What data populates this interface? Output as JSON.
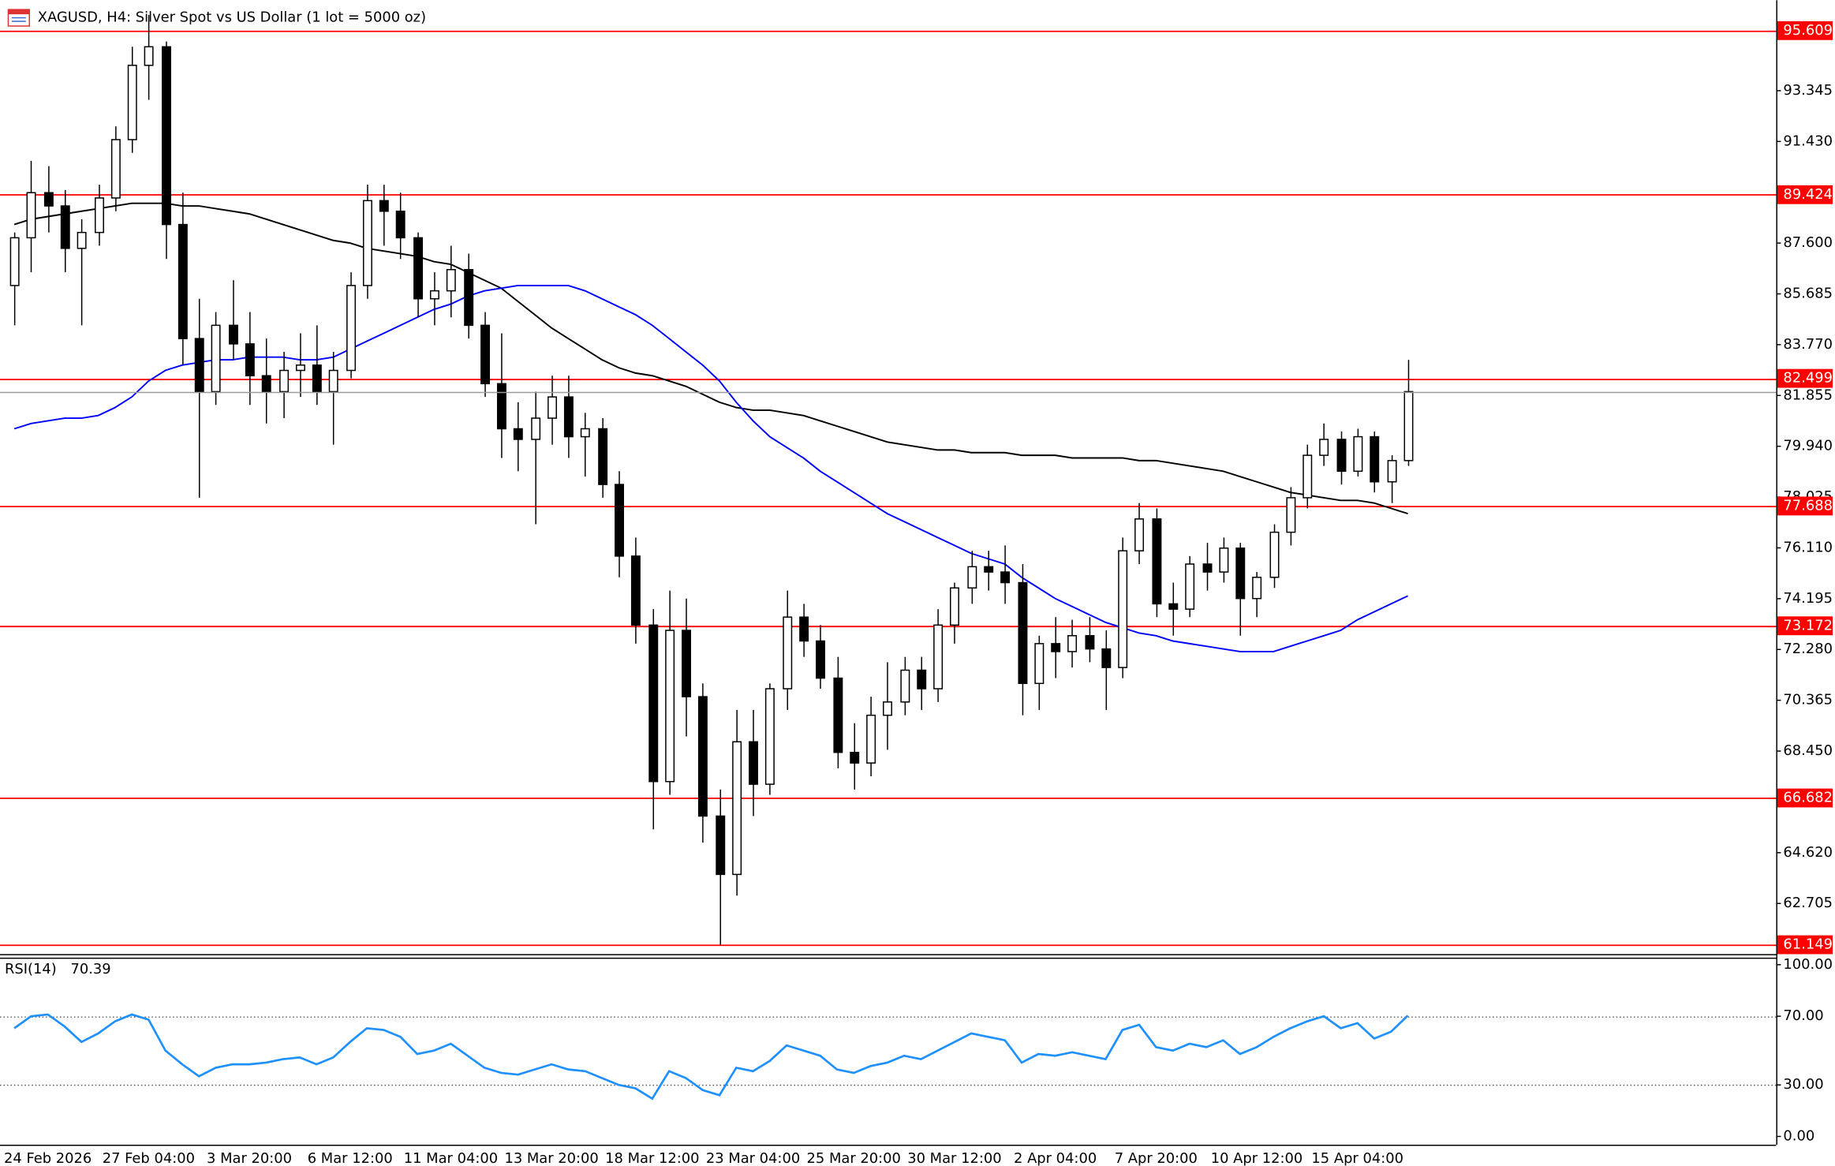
{
  "chart_data": {
    "type": "candlestick",
    "title": "XAGUSD, H4: Silver Spot vs US Dollar (1 lot = 5000 oz)",
    "categories": [
      null,
      null,
      "24 Feb 2026",
      null,
      null,
      null,
      null,
      null,
      "27 Feb 04:00",
      null,
      null,
      null,
      null,
      null,
      "3 Mar 20:00",
      null,
      null,
      null,
      null,
      null,
      "6 Mar 12:00",
      null,
      null,
      null,
      null,
      null,
      "11 Mar 04:00",
      null,
      null,
      null,
      null,
      null,
      "13 Mar 20:00",
      null,
      null,
      null,
      null,
      null,
      "18 Mar 12:00",
      null,
      null,
      null,
      null,
      null,
      "23 Mar 04:00",
      null,
      null,
      null,
      null,
      null,
      "25 Mar 20:00",
      null,
      null,
      null,
      null,
      null,
      "30 Mar 12:00",
      null,
      null,
      null,
      null,
      null,
      "2 Apr 04:00",
      null,
      null,
      null,
      null,
      null,
      "7 Apr 20:00",
      null,
      null,
      null,
      null,
      null,
      "10 Apr 12:00",
      null,
      null,
      null,
      null,
      null,
      "15 Apr 04:00",
      null,
      null,
      null
    ],
    "candles": [
      [
        86,
        88,
        84.5,
        87.8
      ],
      [
        87.8,
        90.7,
        86.5,
        89.5
      ],
      [
        89.5,
        90.5,
        88,
        89.0
      ],
      [
        89.0,
        89.6,
        86.5,
        87.4
      ],
      [
        87.4,
        88.5,
        84.5,
        88.0
      ],
      [
        88,
        89.8,
        87.5,
        89.3
      ],
      [
        89.3,
        92,
        88.8,
        91.5
      ],
      [
        91.5,
        95,
        91,
        94.3
      ],
      [
        94.3,
        96.2,
        93,
        95.0
      ],
      [
        95,
        95.2,
        87,
        88.3
      ],
      [
        88.3,
        89.5,
        83,
        84.0
      ],
      [
        84,
        85.5,
        78,
        82.0
      ],
      [
        82,
        85,
        81.5,
        84.5
      ],
      [
        84.5,
        86.2,
        83.2,
        83.8
      ],
      [
        83.8,
        85,
        81.5,
        82.6
      ],
      [
        82.6,
        84,
        80.8,
        82.0
      ],
      [
        82,
        83.5,
        81,
        82.8
      ],
      [
        82.8,
        84.2,
        81.8,
        83.0
      ],
      [
        83,
        84.5,
        81.5,
        82.0
      ],
      [
        82,
        83.5,
        80,
        82.8
      ],
      [
        82.8,
        86.5,
        82.5,
        86.0
      ],
      [
        86,
        89.8,
        85.5,
        89.2
      ],
      [
        89.2,
        89.8,
        87.5,
        88.8
      ],
      [
        88.8,
        89.5,
        87,
        87.8
      ],
      [
        87.8,
        88,
        84.8,
        85.5
      ],
      [
        85.5,
        86.5,
        84.5,
        85.8
      ],
      [
        85.8,
        87.5,
        84.8,
        86.6
      ],
      [
        86.6,
        87.2,
        84,
        84.5
      ],
      [
        84.5,
        85,
        81.8,
        82.3
      ],
      [
        82.3,
        84.2,
        79.5,
        80.6
      ],
      [
        80.6,
        81.6,
        79,
        80.2
      ],
      [
        80.2,
        82,
        77,
        81.0
      ],
      [
        81,
        82.6,
        80,
        81.8
      ],
      [
        81.8,
        82.6,
        79.5,
        80.3
      ],
      [
        80.3,
        81.2,
        78.8,
        80.6
      ],
      [
        80.6,
        81.0,
        78,
        78.5
      ],
      [
        78.5,
        79,
        75,
        75.8
      ],
      [
        75.8,
        76.5,
        72.5,
        73.2
      ],
      [
        73.2,
        73.8,
        65.5,
        67.3
      ],
      [
        67.3,
        74.5,
        66.8,
        73.0
      ],
      [
        73,
        74.2,
        69,
        70.5
      ],
      [
        70.5,
        71,
        65,
        66.0
      ],
      [
        66,
        67,
        61.149,
        63.8
      ],
      [
        63.8,
        70,
        63,
        68.8
      ],
      [
        68.8,
        70,
        66,
        67.2
      ],
      [
        67.2,
        71,
        66.8,
        70.8
      ],
      [
        70.8,
        74.5,
        70,
        73.5
      ],
      [
        73.5,
        74,
        72,
        72.6
      ],
      [
        72.6,
        73.2,
        70.8,
        71.2
      ],
      [
        71.2,
        72,
        67.8,
        68.4
      ],
      [
        68.4,
        69.5,
        67,
        68.0
      ],
      [
        68,
        70.5,
        67.5,
        69.8
      ],
      [
        69.8,
        71.8,
        68.5,
        70.3
      ],
      [
        70.3,
        72,
        69.8,
        71.5
      ],
      [
        71.5,
        72,
        70,
        70.8
      ],
      [
        70.8,
        73.8,
        70.3,
        73.2
      ],
      [
        73.2,
        74.8,
        72.5,
        74.6
      ],
      [
        74.6,
        76,
        74,
        75.4
      ],
      [
        75.4,
        76,
        74.5,
        75.2
      ],
      [
        75.2,
        76.2,
        74,
        74.8
      ],
      [
        74.8,
        75.5,
        69.8,
        71.0
      ],
      [
        71,
        72.8,
        70,
        72.5
      ],
      [
        72.5,
        73.5,
        71.2,
        72.2
      ],
      [
        72.2,
        73.4,
        71.6,
        72.8
      ],
      [
        72.8,
        73.5,
        71.8,
        72.3
      ],
      [
        72.3,
        73,
        70,
        71.6
      ],
      [
        71.6,
        76.5,
        71.2,
        76.0
      ],
      [
        76,
        77.8,
        75.5,
        77.2
      ],
      [
        77.2,
        77.6,
        73.5,
        74.0
      ],
      [
        74,
        74.8,
        72.8,
        73.8
      ],
      [
        73.8,
        75.8,
        73.5,
        75.5
      ],
      [
        75.5,
        76.3,
        74.5,
        75.2
      ],
      [
        75.2,
        76.5,
        74.8,
        76.1
      ],
      [
        76.1,
        76.3,
        72.8,
        74.2
      ],
      [
        74.2,
        75.2,
        73.5,
        75.0
      ],
      [
        75,
        77,
        74.6,
        76.7
      ],
      [
        76.7,
        78.4,
        76.2,
        78.0
      ],
      [
        78,
        80,
        77.6,
        79.6
      ],
      [
        79.6,
        80.8,
        79.2,
        80.2
      ],
      [
        80.2,
        80.5,
        78.5,
        79.0
      ],
      [
        79,
        80.6,
        78.8,
        80.3
      ],
      [
        80.3,
        80.5,
        78.2,
        78.6
      ],
      [
        78.6,
        79.6,
        77.8,
        79.4
      ],
      [
        79.4,
        83.2,
        79.2,
        82.0
      ]
    ],
    "up_color": "#ffffff",
    "down_color": "#000000",
    "ylim": [
      60.84,
      96.58
    ],
    "yticks": [
      {
        "value": 62.705,
        "label": "62.705"
      },
      {
        "value": 64.62,
        "label": "64.620"
      },
      {
        "value": 68.45,
        "label": "68.450"
      },
      {
        "value": 70.365,
        "label": "70.365"
      },
      {
        "value": 72.28,
        "label": "72.280"
      },
      {
        "value": 74.195,
        "label": "74.195"
      },
      {
        "value": 76.11,
        "label": "76.110"
      },
      {
        "value": 78.025,
        "label": "78.025"
      },
      {
        "value": 79.94,
        "label": "79.940"
      },
      {
        "value": 81.855,
        "label": "81.855"
      },
      {
        "value": 83.77,
        "label": "83.770"
      },
      {
        "value": 85.685,
        "label": "85.685"
      },
      {
        "value": 87.6,
        "label": "87.600"
      },
      {
        "value": 91.43,
        "label": "91.430"
      },
      {
        "value": 93.345,
        "label": "93.345"
      }
    ],
    "levels": [
      {
        "value": 95.609,
        "label": "95.609"
      },
      {
        "value": 89.424,
        "label": "89.424"
      },
      {
        "value": 82.499,
        "label": "82.499"
      },
      {
        "value": 77.688,
        "label": "77.688"
      },
      {
        "value": 73.172,
        "label": "73.172"
      },
      {
        "value": 66.682,
        "label": "66.682"
      },
      {
        "value": 61.149,
        "label": "61.149"
      }
    ],
    "level_color": "#ff0000",
    "series": [
      {
        "color": "#000000",
        "values": [
          88.3,
          88.5,
          88.6,
          88.7,
          88.8,
          88.9,
          89.0,
          89.1,
          89.1,
          89.1,
          89.0,
          89.0,
          88.9,
          88.8,
          88.7,
          88.5,
          88.3,
          88.1,
          87.9,
          87.7,
          87.6,
          87.4,
          87.3,
          87.2,
          87.1,
          86.9,
          86.8,
          86.5,
          86.2,
          85.9,
          85.4,
          84.9,
          84.4,
          84.0,
          83.6,
          83.2,
          82.9,
          82.7,
          82.6,
          82.4,
          82.2,
          81.9,
          81.6,
          81.4,
          81.3,
          81.3,
          81.2,
          81.1,
          80.9,
          80.7,
          80.5,
          80.3,
          80.1,
          80.0,
          79.9,
          79.8,
          79.8,
          79.7,
          79.7,
          79.7,
          79.6,
          79.6,
          79.6,
          79.5,
          79.5,
          79.5,
          79.5,
          79.4,
          79.4,
          79.3,
          79.2,
          79.1,
          79.0,
          78.8,
          78.6,
          78.4,
          78.2,
          78.1,
          78.0,
          77.9,
          77.9,
          77.8,
          77.6,
          77.4
        ]
      },
      {
        "color": "#0000ff",
        "values": [
          80.6,
          80.8,
          80.9,
          81.0,
          81.0,
          81.1,
          81.4,
          81.8,
          82.4,
          82.8,
          83.0,
          83.1,
          83.2,
          83.2,
          83.3,
          83.3,
          83.3,
          83.2,
          83.2,
          83.3,
          83.6,
          83.9,
          84.2,
          84.5,
          84.8,
          85.1,
          85.3,
          85.6,
          85.8,
          85.9,
          86.0,
          86.0,
          86.0,
          86.0,
          85.8,
          85.5,
          85.2,
          84.9,
          84.5,
          84.0,
          83.5,
          83.0,
          82.4,
          81.6,
          80.9,
          80.3,
          79.9,
          79.5,
          79.0,
          78.6,
          78.2,
          77.8,
          77.4,
          77.1,
          76.8,
          76.5,
          76.2,
          75.9,
          75.7,
          75.5,
          75.0,
          74.6,
          74.2,
          73.9,
          73.6,
          73.3,
          73.1,
          72.9,
          72.8,
          72.6,
          72.5,
          72.4,
          72.3,
          72.2,
          72.2,
          72.2,
          72.4,
          72.6,
          72.8,
          73.0,
          73.4,
          73.7,
          74.0,
          74.3
        ]
      }
    ],
    "rsi": {
      "title": "RSI(14)",
      "color": "#1e90ff",
      "values": [
        63,
        70,
        71,
        64,
        55,
        60,
        67,
        71,
        68,
        50,
        42,
        35,
        40,
        42,
        42,
        43,
        45,
        46,
        42,
        46,
        55,
        63,
        62,
        58,
        48,
        50,
        54,
        47,
        40,
        37,
        36,
        39,
        42,
        39,
        38,
        34,
        30,
        28,
        22,
        38,
        34,
        27,
        24,
        40,
        38,
        44,
        53,
        50,
        47,
        39,
        37,
        41,
        43,
        47,
        45,
        50,
        55,
        60,
        58,
        56,
        43,
        48,
        47,
        49,
        47,
        45,
        62,
        65,
        52,
        50,
        54,
        52,
        56,
        48,
        52,
        58,
        63,
        67,
        70,
        63,
        66,
        57,
        61,
        70.39
      ],
      "ylim": [
        0,
        100
      ],
      "yticks": [
        {
          "value": 100,
          "label": "100.00"
        },
        {
          "value": 70,
          "label": "70.00"
        },
        {
          "value": 30,
          "label": "30.00"
        },
        {
          "value": 0,
          "label": "0.00"
        }
      ]
    }
  }
}
